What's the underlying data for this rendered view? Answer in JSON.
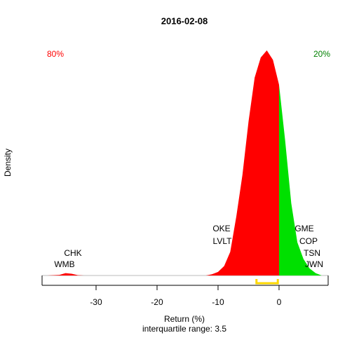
{
  "chart_data": {
    "type": "density",
    "title": "2016-02-08",
    "x_label": "Return (%)",
    "subtitle": "interquartile range: 3.5",
    "y_label": "Density",
    "xlim": [
      -38.85,
      8.05
    ],
    "ylim": [
      0,
      0.2
    ],
    "xticks": [
      -30,
      -20,
      -10,
      0
    ],
    "series": [
      {
        "color": "#ff0000",
        "x": [
          -38,
          -36,
          -35,
          -34,
          -33,
          -32,
          -12,
          -11,
          -10,
          -9,
          -8,
          -7,
          -6,
          -5,
          -4,
          -3,
          -2,
          -1,
          0
        ],
        "values": [
          0,
          0.0005,
          0.002,
          0.0015,
          0.0003,
          0,
          0,
          0.001,
          0.003,
          0.008,
          0.02,
          0.05,
          0.085,
          0.13,
          0.167,
          0.184,
          0.19,
          0.182,
          0.161
        ]
      },
      {
        "color": "#00e000",
        "x": [
          0,
          1,
          2,
          3,
          4,
          5,
          6,
          7
        ],
        "values": [
          0.161,
          0.114,
          0.061,
          0.028,
          0.014,
          0.006,
          0.002,
          0
        ]
      }
    ],
    "share_labels": [
      {
        "text": "80%",
        "color": "#ff0000"
      },
      {
        "text": "20%",
        "color": "#008000"
      }
    ],
    "stock_labels": [
      "OKE",
      "LVLT",
      "CHK",
      "WMB",
      "GME",
      "COP",
      "TSN",
      "JWN"
    ],
    "iqr_bracket": [
      -3.7,
      -0.2
    ],
    "iqr_color": "#ffd700"
  }
}
